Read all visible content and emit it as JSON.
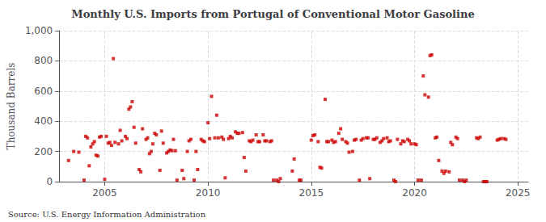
{
  "chart_data": {
    "type": "scatter",
    "title": "Monthly U.S. Imports from Portugal of Conventional Motor Gasoline",
    "ylabel": "Thousand Barrels",
    "source": "Source: U.S. Energy Information Administration",
    "color": "#cc0000",
    "marker": "square",
    "grid": true,
    "xlim": [
      2002.8,
      2025.5
    ],
    "xticks": [
      2005,
      2010,
      2015,
      2020,
      2025
    ],
    "ylim": [
      0,
      1000
    ],
    "yticks": [
      0,
      200,
      400,
      600,
      800,
      {
        "value": 1000,
        "label": "1,000"
      }
    ],
    "x": [
      2003.25,
      2003.5,
      2003.75,
      2004.0,
      2004.08,
      2004.17,
      2004.25,
      2004.33,
      2004.42,
      2004.5,
      2004.58,
      2004.67,
      2004.75,
      2004.83,
      2005.0,
      2005.08,
      2005.17,
      2005.25,
      2005.33,
      2005.42,
      2005.5,
      2005.67,
      2005.75,
      2005.83,
      2006.0,
      2006.08,
      2006.17,
      2006.25,
      2006.33,
      2006.42,
      2006.5,
      2006.67,
      2006.75,
      2006.83,
      2007.0,
      2007.08,
      2007.17,
      2007.25,
      2007.33,
      2007.42,
      2007.5,
      2007.67,
      2007.75,
      2007.83,
      2008.0,
      2008.08,
      2008.17,
      2008.25,
      2008.33,
      2008.42,
      2008.5,
      2008.75,
      2008.83,
      2009.0,
      2009.08,
      2009.17,
      2009.33,
      2009.42,
      2009.5,
      2009.67,
      2009.75,
      2009.83,
      2010.0,
      2010.08,
      2010.17,
      2010.33,
      2010.42,
      2010.5,
      2010.67,
      2010.75,
      2010.83,
      2011.0,
      2011.08,
      2011.17,
      2011.33,
      2011.42,
      2011.5,
      2011.67,
      2011.75,
      2011.83,
      2012.0,
      2012.08,
      2012.17,
      2012.33,
      2012.42,
      2012.5,
      2012.67,
      2012.75,
      2012.83,
      2013.0,
      2013.08,
      2013.17,
      2013.33,
      2013.42,
      2013.5,
      2014.08,
      2014.17,
      2014.42,
      2014.5,
      2015.0,
      2015.08,
      2015.17,
      2015.33,
      2015.42,
      2015.5,
      2015.67,
      2015.75,
      2015.83,
      2016.0,
      2016.08,
      2016.17,
      2016.33,
      2016.42,
      2016.5,
      2016.67,
      2016.75,
      2016.83,
      2017.0,
      2017.08,
      2017.17,
      2017.33,
      2017.42,
      2017.5,
      2017.67,
      2017.75,
      2017.83,
      2018.0,
      2018.08,
      2018.17,
      2018.33,
      2018.42,
      2018.5,
      2018.67,
      2018.75,
      2018.83,
      2019.0,
      2019.08,
      2019.17,
      2019.33,
      2019.42,
      2019.5,
      2019.67,
      2019.75,
      2019.83,
      2020.0,
      2020.08,
      2020.17,
      2020.33,
      2020.42,
      2020.5,
      2020.67,
      2020.75,
      2020.83,
      2021.0,
      2021.08,
      2021.17,
      2021.33,
      2021.42,
      2021.5,
      2021.67,
      2021.75,
      2021.83,
      2022.0,
      2022.08,
      2022.17,
      2022.33,
      2022.42,
      2022.5,
      2023.0,
      2023.08,
      2023.17,
      2023.33,
      2023.42,
      2023.5,
      2024.0,
      2024.08,
      2024.17,
      2024.33,
      2024.42
    ],
    "values": [
      140,
      200,
      195,
      10,
      300,
      290,
      105,
      230,
      250,
      265,
      175,
      170,
      295,
      300,
      15,
      300,
      255,
      260,
      240,
      815,
      260,
      250,
      340,
      270,
      300,
      285,
      480,
      495,
      530,
      360,
      255,
      80,
      65,
      350,
      280,
      290,
      185,
      200,
      250,
      320,
      310,
      75,
      335,
      255,
      190,
      200,
      210,
      205,
      280,
      205,
      10,
      75,
      20,
      200,
      270,
      280,
      10,
      200,
      80,
      280,
      270,
      265,
      390,
      285,
      565,
      290,
      440,
      290,
      295,
      280,
      25,
      285,
      300,
      290,
      330,
      320,
      320,
      325,
      160,
      70,
      270,
      265,
      275,
      310,
      265,
      265,
      310,
      270,
      270,
      265,
      270,
      10,
      10,
      0,
      20,
      70,
      150,
      10,
      10,
      275,
      305,
      310,
      265,
      95,
      90,
      545,
      265,
      265,
      275,
      260,
      265,
      320,
      350,
      280,
      265,
      255,
      195,
      200,
      275,
      280,
      10,
      275,
      285,
      290,
      290,
      20,
      280,
      280,
      290,
      260,
      270,
      285,
      290,
      265,
      270,
      10,
      0,
      280,
      250,
      270,
      265,
      280,
      270,
      250,
      250,
      245,
      10,
      10,
      700,
      575,
      560,
      835,
      840,
      290,
      295,
      140,
      70,
      55,
      70,
      65,
      260,
      245,
      295,
      285,
      10,
      10,
      0,
      10,
      290,
      285,
      295,
      0,
      0,
      0,
      275,
      280,
      285,
      285,
      280
    ]
  }
}
